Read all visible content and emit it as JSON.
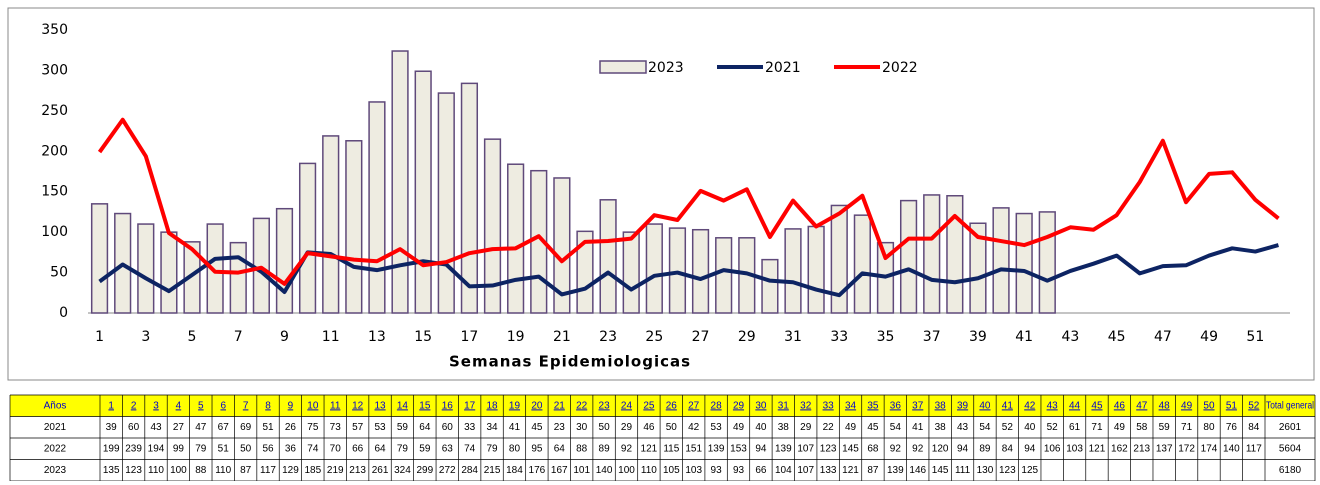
{
  "chart_data": {
    "type": "bar",
    "x_title": "Semanas Epidemiologicas",
    "x": [
      1,
      2,
      3,
      4,
      5,
      6,
      7,
      8,
      9,
      10,
      11,
      12,
      13,
      14,
      15,
      16,
      17,
      18,
      19,
      20,
      21,
      22,
      23,
      24,
      25,
      26,
      27,
      28,
      29,
      30,
      31,
      32,
      33,
      34,
      35,
      36,
      37,
      38,
      39,
      40,
      41,
      42,
      43,
      44,
      45,
      46,
      47,
      48,
      49,
      50,
      51,
      52
    ],
    "xlim": [
      0.5,
      52.5
    ],
    "xticks": [
      1,
      3,
      5,
      7,
      9,
      11,
      13,
      15,
      17,
      19,
      21,
      23,
      25,
      27,
      29,
      31,
      33,
      35,
      37,
      39,
      41,
      43,
      45,
      47,
      49,
      51
    ],
    "ylim": [
      0,
      350
    ],
    "yticks": [
      0,
      50,
      100,
      150,
      200,
      250,
      300,
      350
    ],
    "table_header": "Años",
    "total_header": "Total general",
    "series": [
      {
        "name": "2021",
        "type": "line",
        "color": "#0d2463",
        "total": 2601,
        "values": [
          39,
          60,
          43,
          27,
          47,
          67,
          69,
          51,
          26,
          75,
          73,
          57,
          53,
          59,
          64,
          60,
          33,
          34,
          41,
          45,
          23,
          30,
          50,
          29,
          46,
          50,
          42,
          53,
          49,
          40,
          38,
          29,
          22,
          49,
          45,
          54,
          41,
          38,
          43,
          54,
          52,
          40,
          52,
          61,
          71,
          49,
          58,
          59,
          71,
          80,
          76,
          84
        ]
      },
      {
        "name": "2022",
        "type": "line",
        "color": "#ff0000",
        "total": 5604,
        "values": [
          199,
          239,
          194,
          99,
          79,
          51,
          50,
          56,
          36,
          74,
          70,
          66,
          64,
          79,
          59,
          63,
          74,
          79,
          80,
          95,
          64,
          88,
          89,
          92,
          121,
          115,
          151,
          139,
          153,
          94,
          139,
          107,
          123,
          145,
          68,
          92,
          92,
          120,
          94,
          89,
          84,
          94,
          106,
          103,
          121,
          162,
          213,
          137,
          172,
          174,
          140,
          117
        ]
      },
      {
        "name": "2023",
        "type": "bar",
        "color": "#eeece1",
        "total": 6180,
        "values": [
          135,
          123,
          110,
          100,
          88,
          110,
          87,
          117,
          129,
          185,
          219,
          213,
          261,
          324,
          299,
          272,
          284,
          215,
          184,
          176,
          167,
          101,
          140,
          100,
          110,
          105,
          103,
          93,
          93,
          66,
          104,
          107,
          133,
          121,
          87,
          139,
          146,
          145,
          111,
          130,
          123,
          125,
          null,
          null,
          null,
          null,
          null,
          null,
          null,
          null,
          null,
          null
        ]
      }
    ]
  }
}
